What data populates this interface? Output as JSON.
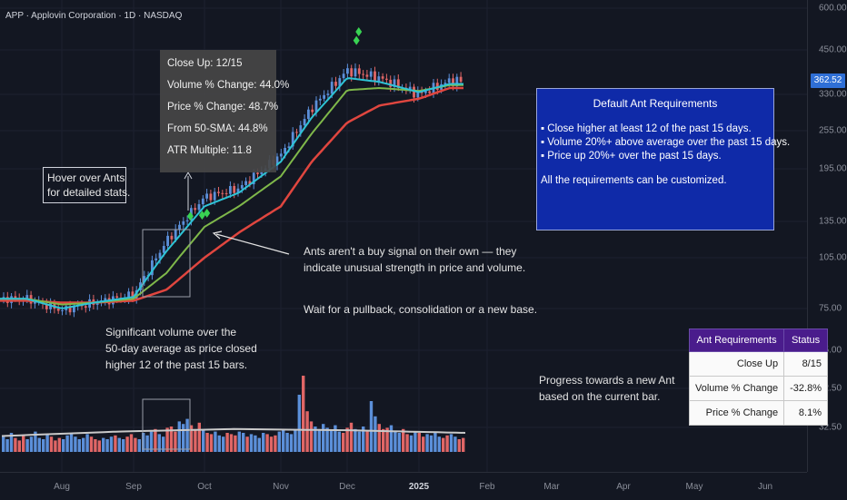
{
  "header": {
    "title": "APP · Applovin Corporation · 1D · NASDAQ"
  },
  "price_axis": {
    "labels": [
      "600.00",
      "450.00",
      "330.00",
      "255.00",
      "195.00",
      "135.00",
      "105.00",
      "75.00",
      "55.00",
      "42.50",
      "32.50"
    ],
    "last_price": "362.52"
  },
  "time_axis": {
    "labels": [
      "Aug",
      "Sep",
      "Oct",
      "Nov",
      "Dec",
      "2025",
      "Feb",
      "Mar",
      "Apr",
      "May",
      "Jun"
    ]
  },
  "tooltip": {
    "lines": [
      "Close Up: 12/15",
      "Volume % Change: 44.0%",
      "Price % Change: 48.7%",
      "From 50-SMA: 44.8%",
      "ATR Multiple: 11.8"
    ]
  },
  "annotations": {
    "hover": [
      "Hover over Ants",
      "for detailed stats."
    ],
    "ants_note": [
      "Ants aren't a buy signal on their own — they",
      "indicate unusual strength in price and volume."
    ],
    "wait_note": "Wait for a pullback, consolidation or a new base.",
    "volume_note": [
      "Significant volume over the",
      "50-day average as price closed",
      "higher 12 of the past 15 bars."
    ],
    "progress_note": [
      "Progress towards a new Ant",
      "based on the current bar."
    ]
  },
  "ant_requirements": {
    "title": "Default Ant Requirements",
    "items": [
      "▪ Close higher at least 12 of the past 15 days.",
      "▪ Volume 20%+ above average over the past 15 days.",
      "▪ Price up 20%+ over the past 15 days."
    ],
    "footer": "All the requirements can be customized."
  },
  "status_table": {
    "headers": [
      "Ant Requirements",
      "Status"
    ],
    "rows": [
      {
        "label": "Close Up",
        "value": "8/15"
      },
      {
        "label": "Volume % Change",
        "value": "-32.8%"
      },
      {
        "label": "Price % Change",
        "value": "8.1%"
      }
    ]
  },
  "colors": {
    "background": "#131722",
    "up": "#5b8fd9",
    "down": "#e06666",
    "ema_fast": "#2ec4d6",
    "ema_mid": "#7fb84a",
    "sma_slow": "#e0463f",
    "ant": "#39d353",
    "table_header": "#4a1c8c",
    "ant_box": "#0f2aa8"
  },
  "chart_data": {
    "type": "line",
    "symbol": "APP",
    "timeframe": "1D",
    "y_scale": "log",
    "ylim": [
      28,
      650
    ],
    "x": [
      "2024-07-15",
      "2024-08-01",
      "2024-08-15",
      "2024-09-01",
      "2024-09-15",
      "2024-10-01",
      "2024-10-15",
      "2024-11-01",
      "2024-11-15",
      "2024-12-01",
      "2024-12-15",
      "2025-01-01",
      "2025-01-15"
    ],
    "series": [
      {
        "values": [
          80,
          74,
          78,
          82,
          118,
          160,
          170,
          215,
          300,
          390,
          370,
          330,
          362.52
        ]
      },
      {
        "values": [
          80,
          75,
          78,
          81,
          110,
          150,
          165,
          205,
          280,
          370,
          360,
          335,
          355
        ]
      },
      {
        "values": [
          80,
          77,
          78,
          80,
          95,
          130,
          150,
          185,
          250,
          340,
          345,
          338,
          352
        ]
      },
      {
        "values": [
          79,
          78,
          78,
          79,
          85,
          105,
          125,
          150,
          205,
          270,
          305,
          320,
          345
        ]
      }
    ],
    "ant_markers": [
      {
        "date": "2024-09-25",
        "price": 140
      },
      {
        "date": "2024-09-30",
        "price": 141
      },
      {
        "date": "2024-10-02",
        "price": 143
      },
      {
        "date": "2024-12-05",
        "price": 480
      },
      {
        "date": "2024-12-06",
        "price": 510
      }
    ],
    "volume": {
      "values": [
        1.2,
        1.0,
        1.5,
        1.1,
        0.9,
        1.3,
        1.0,
        1.2,
        1.6,
        1.1,
        1.0,
        1.4,
        1.2,
        0.9,
        1.1,
        1.0,
        1.3,
        1.5,
        1.2,
        1.0,
        1.1,
        1.4,
        1.2,
        1.0,
        0.9,
        1.1,
        1.0,
        1.2,
        1.3,
        1.1,
        1.0,
        1.2,
        1.4,
        1.1,
        1.0,
        1.5,
        1.3,
        1.6,
        1.8,
        1.4,
        1.2,
        1.9,
        2.0,
        1.6,
        2.4,
        2.2,
        2.6,
        2.1,
        1.8,
        2.3,
        1.7,
        1.5,
        1.4,
        1.6,
        1.3,
        1.2,
        1.5,
        1.4,
        1.3,
        1.6,
        1.5,
        1.2,
        1.4,
        1.3,
        1.1,
        1.5,
        1.4,
        1.2,
        1.3,
        1.6,
        1.8,
        1.5,
        1.4,
        1.7,
        4.5,
        6.0,
        3.2,
        2.4,
        2.0,
        1.8,
        2.2,
        1.9,
        1.7,
        2.1,
        1.6,
        1.5,
        1.9,
        2.3,
        1.8,
        1.6,
        2.0,
        1.7,
        4.0,
        2.8,
        2.2,
        1.8,
        1.9,
        2.1,
        1.6,
        1.5,
        1.8,
        1.4,
        1.3,
        1.6,
        1.5,
        1.2,
        1.4,
        1.3,
        1.5,
        1.2,
        1.1,
        1.3,
        1.4,
        1.2,
        1.0,
        1.1
      ],
      "avg_line": [
        1.25,
        1.6,
        1.8,
        1.7,
        1.5
      ]
    }
  }
}
